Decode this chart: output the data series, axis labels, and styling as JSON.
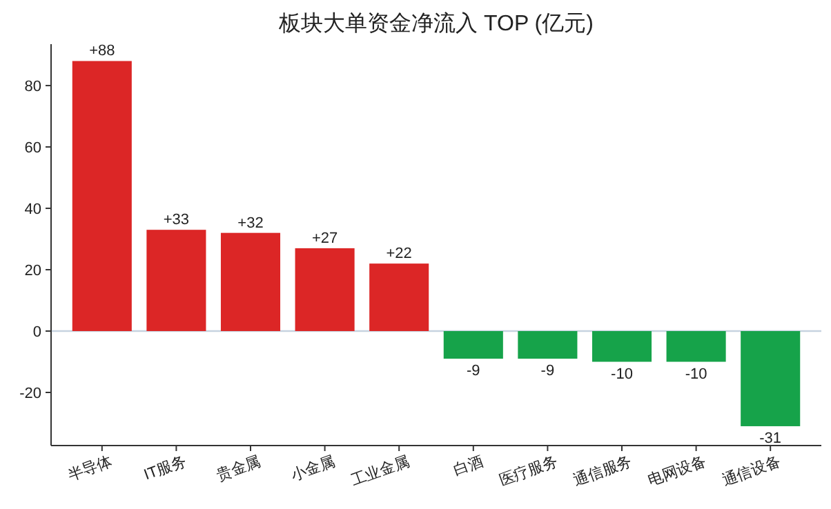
{
  "chart_data": {
    "type": "bar",
    "title": "板块大单资金净流入 TOP (亿元)",
    "categories": [
      "半导体",
      "IT服务",
      "贵金属",
      "小金属",
      "工业金属",
      "白酒",
      "医疗服务",
      "通信服务",
      "电网设备",
      "通信设备"
    ],
    "values": [
      88,
      33,
      32,
      27,
      22,
      -9,
      -9,
      -10,
      -10,
      -31
    ],
    "colors": [
      "#dc2626",
      "#dc2626",
      "#dc2626",
      "#dc2626",
      "#dc2626",
      "#16a34a",
      "#16a34a",
      "#16a34a",
      "#16a34a",
      "#16a34a"
    ],
    "value_labels": [
      "+88",
      "+33",
      "+32",
      "+27",
      "+22",
      "-9",
      "-9",
      "-10",
      "-10",
      "-31"
    ],
    "ylim": [
      -37.3,
      93.5
    ],
    "yticks": [
      {
        "value": -20,
        "label": "-20"
      },
      0,
      20,
      40,
      60,
      80
    ],
    "ref_lines": [
      {
        "axis": "y",
        "value": 0,
        "color": "#c6d3e0"
      }
    ],
    "grid": false
  }
}
